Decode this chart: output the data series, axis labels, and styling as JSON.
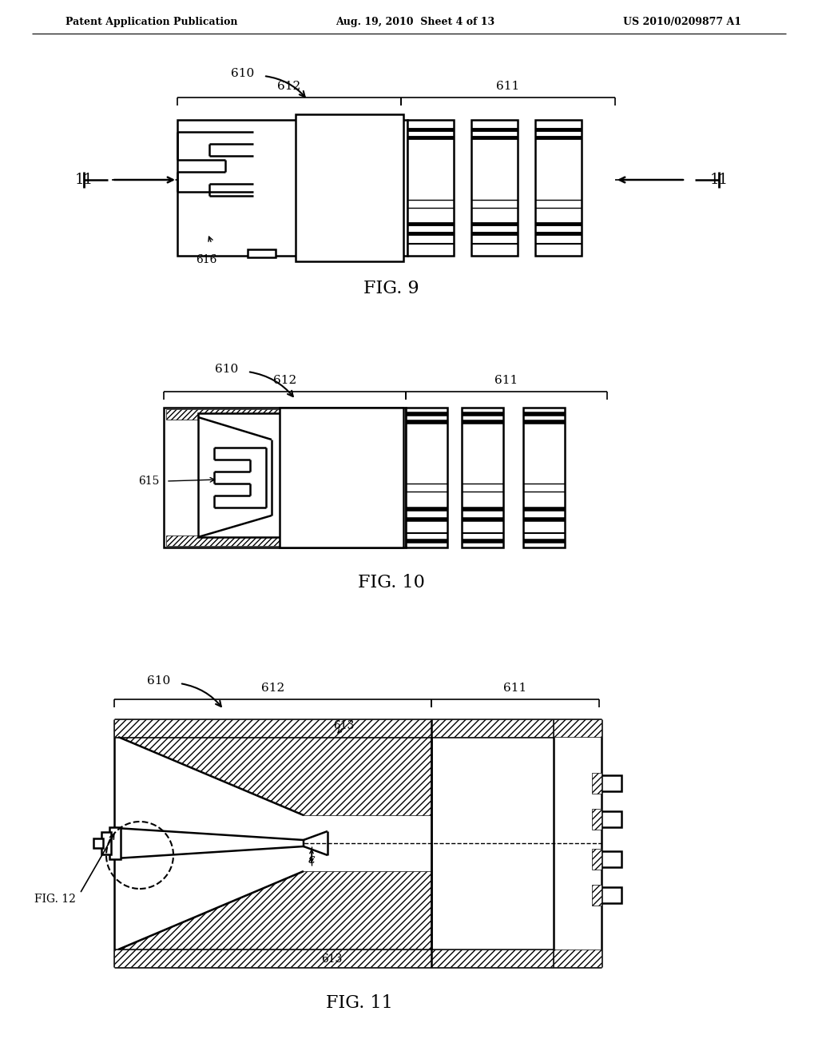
{
  "bg_color": "#ffffff",
  "header_left": "Patent Application Publication",
  "header_mid": "Aug. 19, 2010  Sheet 4 of 13",
  "header_right": "US 2010/0209877 A1",
  "fig9_label": "FIG. 9",
  "fig10_label": "FIG. 10",
  "fig11_label": "FIG. 11",
  "fig12_ref": "FIG. 12",
  "lw_main": 1.8,
  "lw_thin": 0.9,
  "lw_thick": 3.0
}
